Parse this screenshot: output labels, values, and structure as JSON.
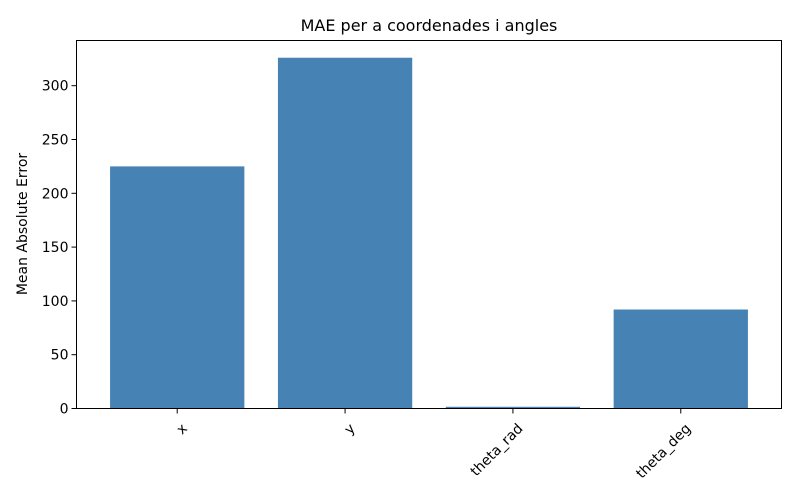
{
  "chart_data": {
    "type": "bar",
    "title": "MAE per a coordenades i angles",
    "xlabel": "",
    "ylabel": "Mean Absolute Error",
    "categories": [
      "x",
      "y",
      "theta_rad",
      "theta_deg"
    ],
    "values": [
      225,
      326,
      1.6,
      92
    ],
    "ylim": [
      0,
      342
    ],
    "yticks": [
      0,
      50,
      100,
      150,
      200,
      250,
      300
    ],
    "bar_color": "#4682b4",
    "grid": false,
    "legend": "none",
    "xtick_rotation_deg": 45
  }
}
